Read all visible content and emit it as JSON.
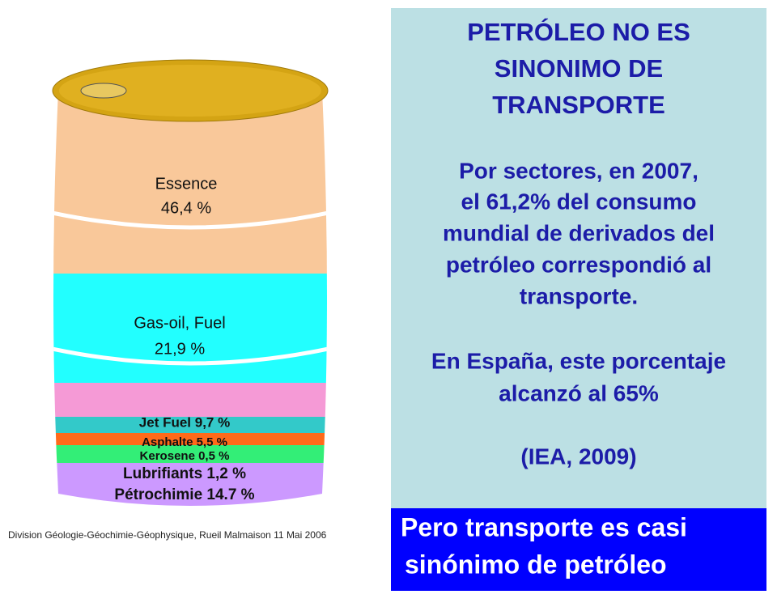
{
  "barrel": {
    "segments": [
      {
        "lines": [
          "Essence",
          "46,4 %"
        ]
      },
      {
        "lines": [
          "Gas-oil, Fuel",
          "21,9 %"
        ]
      },
      {
        "lines": [
          "Jet Fuel 9,7 %"
        ]
      },
      {
        "lines": [
          "Asphalte  5,5 %"
        ]
      },
      {
        "lines": [
          "Kerosene  0,5 %"
        ]
      },
      {
        "lines": [
          "Lubrifiants 1,2 %"
        ]
      },
      {
        "lines": [
          "Pétrochimie 14.7 %"
        ]
      }
    ]
  },
  "footer": "Division Géologie-Géochimie-Géophysique,  Rueil Malmaison 11 Mai 2006",
  "panel": {
    "title": [
      "PETRÓLEO NO ES",
      "SINONIMO DE",
      "TRANSPORTE"
    ],
    "paragraph_1": [
      "Por sectores, en 2007,",
      "el 61,2% del consumo",
      "mundial de derivados del",
      "petróleo correspondió al",
      "transporte."
    ],
    "paragraph_2": [
      "En España, este porcentaje",
      "alcanzó al 65%"
    ],
    "source": "(IEA, 2009)"
  },
  "banner": [
    "Pero transporte es casi",
    "sinónimo de petróleo"
  ]
}
